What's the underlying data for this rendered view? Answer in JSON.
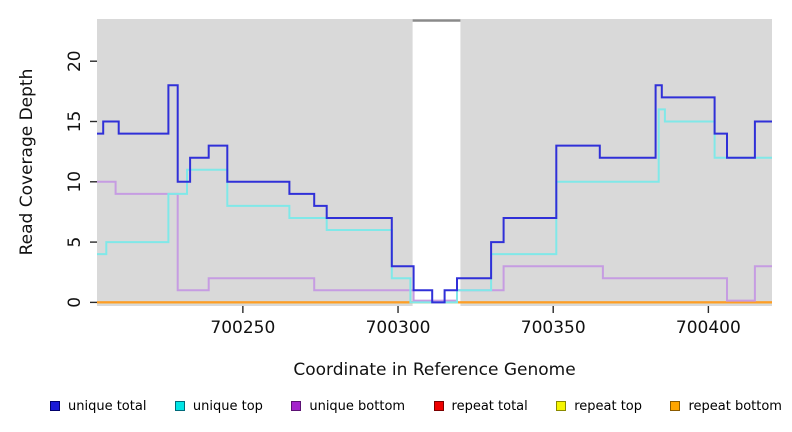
{
  "chart_data": {
    "type": "line",
    "subtype": "step-coverage",
    "title": "",
    "xlabel": "Coordinate in Reference Genome",
    "ylabel": "Read Coverage Depth",
    "x_ticks": [
      700250,
      700300,
      700350,
      700400
    ],
    "y_ticks": [
      0,
      5,
      10,
      15,
      20
    ],
    "x_range": [
      700203,
      700420.5
    ],
    "y_range": [
      -0.3,
      23.5
    ],
    "grid": false,
    "legend_position": "bottom",
    "plot_bg": "#d9d9d9",
    "tick_color": "#2b2b2b",
    "gap_band": {
      "x_start": 700304.7,
      "x_end": 700320.1,
      "fill": "#ffffff",
      "top_border": "#8a8a8a"
    },
    "series": [
      {
        "name": "repeat total",
        "color": "#dd2222",
        "legend_fill": "#ee0000",
        "legend_border": "#7a0000",
        "steps": [
          [
            700203,
            0
          ]
        ]
      },
      {
        "name": "repeat top",
        "color": "#f2f200",
        "legend_fill": "#f5f500",
        "legend_border": "#8a8a00",
        "steps": [
          [
            700203,
            0
          ]
        ]
      },
      {
        "name": "repeat bottom",
        "color": "#ff9d26",
        "legend_fill": "#ffa500",
        "legend_border": "#8a5a00",
        "steps": [
          [
            700203,
            0
          ]
        ]
      },
      {
        "name": "unique bottom",
        "color": "#c69ce2",
        "legend_fill": "#a422cc",
        "legend_border": "#5c1273",
        "zero_lift": 0.15,
        "steps": [
          [
            700203,
            10
          ],
          [
            700209,
            9
          ],
          [
            700229,
            1
          ],
          [
            700239,
            2
          ],
          [
            700273,
            1
          ],
          [
            700305,
            0
          ],
          [
            700319,
            1
          ],
          [
            700334,
            3
          ],
          [
            700366,
            2
          ],
          [
            700406,
            0
          ],
          [
            700415,
            3
          ]
        ]
      },
      {
        "name": "unique top",
        "color": "#80e8e8",
        "legend_fill": "#00e5e5",
        "legend_border": "#006a7a",
        "steps": [
          [
            700203,
            4
          ],
          [
            700206,
            5
          ],
          [
            700226,
            9
          ],
          [
            700232,
            11
          ],
          [
            700245,
            8
          ],
          [
            700265,
            7
          ],
          [
            700277,
            6
          ],
          [
            700298,
            2
          ],
          [
            700304,
            0
          ],
          [
            700319,
            1
          ],
          [
            700330,
            4
          ],
          [
            700351,
            10
          ],
          [
            700384,
            16
          ],
          [
            700386,
            15
          ],
          [
            700402,
            12
          ]
        ]
      },
      {
        "name": "unique total",
        "color": "#3030d8",
        "legend_fill": "#1a1ad6",
        "legend_border": "#00006b",
        "steps": [
          [
            700203,
            14
          ],
          [
            700205,
            15
          ],
          [
            700210,
            14
          ],
          [
            700226,
            18
          ],
          [
            700229,
            10
          ],
          [
            700233,
            12
          ],
          [
            700239,
            13
          ],
          [
            700245,
            10
          ],
          [
            700265,
            9
          ],
          [
            700273,
            8
          ],
          [
            700277,
            7
          ],
          [
            700298,
            3
          ],
          [
            700305,
            1
          ],
          [
            700311,
            0
          ],
          [
            700315,
            1
          ],
          [
            700319,
            2
          ],
          [
            700330,
            5
          ],
          [
            700334,
            7
          ],
          [
            700351,
            13
          ],
          [
            700365,
            12
          ],
          [
            700383,
            18
          ],
          [
            700385,
            17
          ],
          [
            700402,
            14
          ],
          [
            700406,
            12
          ],
          [
            700415,
            15
          ]
        ]
      }
    ],
    "legend_order": [
      "unique total",
      "unique top",
      "unique bottom",
      "repeat total",
      "repeat top",
      "repeat bottom"
    ]
  }
}
